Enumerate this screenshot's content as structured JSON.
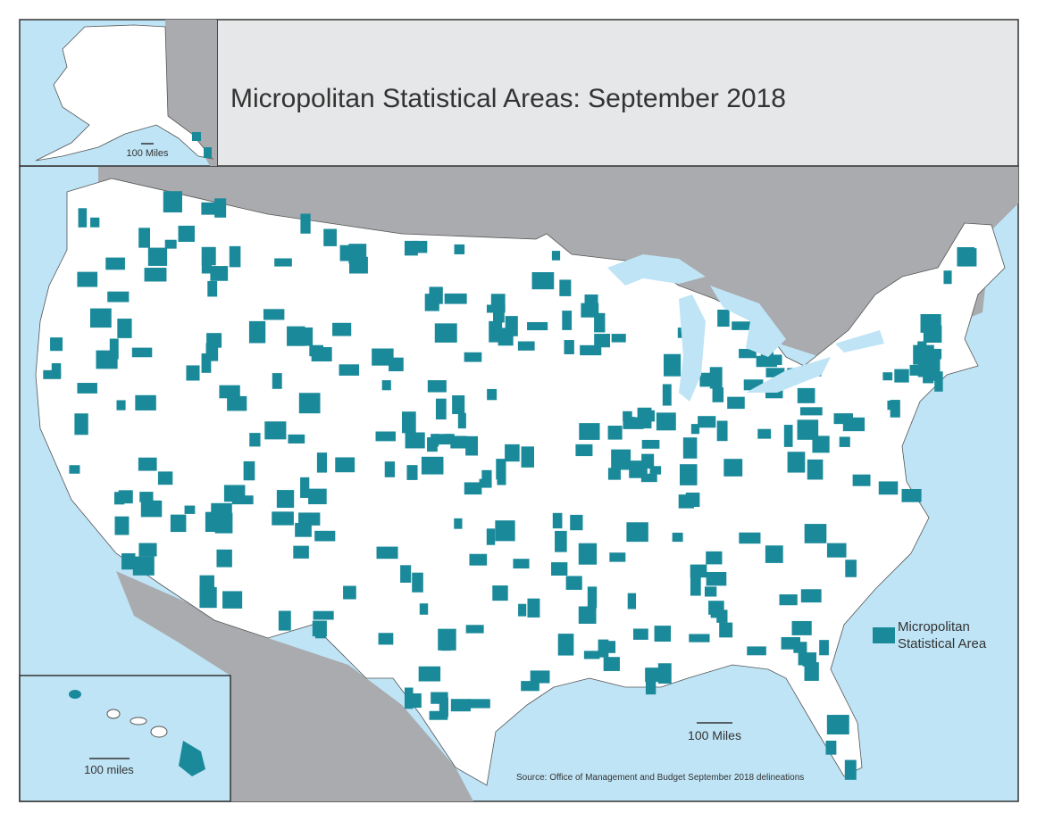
{
  "title": "Micropolitan Statistical Areas: September 2018",
  "legend": {
    "label": "Micropolitan Statistical Area"
  },
  "scale_bars": {
    "alaska": "100 Miles",
    "main": "100 Miles",
    "hawaii": "100 miles"
  },
  "source": "Source: Office of Management and Budget September 2018 delineations"
}
